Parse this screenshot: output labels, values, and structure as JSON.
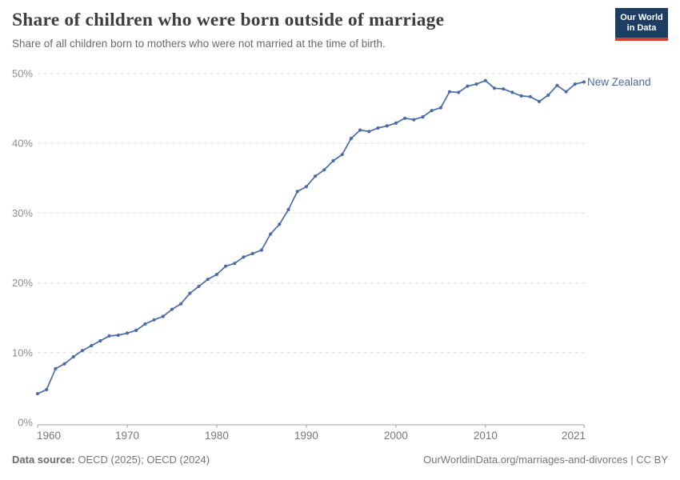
{
  "header": {
    "title": "Share of children who were born outside of marriage",
    "subtitle": "Share of all children born to mothers who were not married at the time of birth."
  },
  "logo": {
    "line1": "Our World",
    "line2": "in Data",
    "bg_color": "#1d3d63",
    "accent_color": "#dc3b32"
  },
  "chart_data": {
    "type": "line",
    "title": "Share of children who were born outside of marriage",
    "xlabel": "",
    "ylabel": "",
    "grid": "horizontal-dashed",
    "legend_position": "end-of-line-label",
    "xlim": [
      1960,
      2021
    ],
    "ylim": [
      0,
      50
    ],
    "xticks": [
      1960,
      1970,
      1980,
      1990,
      2000,
      2010,
      2021
    ],
    "yticks": [
      0,
      10,
      20,
      30,
      40,
      50
    ],
    "ytick_suffix": "%",
    "x": [
      1960,
      1961,
      1962,
      1963,
      1964,
      1965,
      1966,
      1967,
      1968,
      1969,
      1970,
      1971,
      1972,
      1973,
      1974,
      1975,
      1976,
      1977,
      1978,
      1979,
      1980,
      1981,
      1982,
      1983,
      1984,
      1985,
      1986,
      1987,
      1988,
      1989,
      1990,
      1991,
      1992,
      1993,
      1994,
      1995,
      1996,
      1997,
      1998,
      1999,
      2000,
      2001,
      2002,
      2003,
      2004,
      2005,
      2006,
      2007,
      2008,
      2009,
      2010,
      2011,
      2012,
      2013,
      2014,
      2015,
      2016,
      2017,
      2018,
      2019,
      2020,
      2021
    ],
    "series": [
      {
        "name": "New Zealand",
        "color": "#4a6ba6",
        "values": [
          4.1,
          4.7,
          7.7,
          8.4,
          9.4,
          10.3,
          11.0,
          11.7,
          12.4,
          12.5,
          12.8,
          13.2,
          14.1,
          14.7,
          15.2,
          16.2,
          17.0,
          18.5,
          19.5,
          20.5,
          21.2,
          22.4,
          22.8,
          23.7,
          24.2,
          24.7,
          27.0,
          28.4,
          30.5,
          33.1,
          33.8,
          35.3,
          36.2,
          37.5,
          38.4,
          40.7,
          41.9,
          41.7,
          42.2,
          42.5,
          42.9,
          43.6,
          43.4,
          43.8,
          44.7,
          45.1,
          47.4,
          47.3,
          48.2,
          48.5,
          49.0,
          47.9,
          47.8,
          47.3,
          46.8,
          46.7,
          46.0,
          46.9,
          48.3,
          47.4,
          48.5,
          48.8
        ]
      }
    ]
  },
  "footer": {
    "source_label": "Data source:",
    "source_text": "OECD (2025); OECD (2024)",
    "attribution": "OurWorldinData.org/marriages-and-divorces | CC BY"
  }
}
